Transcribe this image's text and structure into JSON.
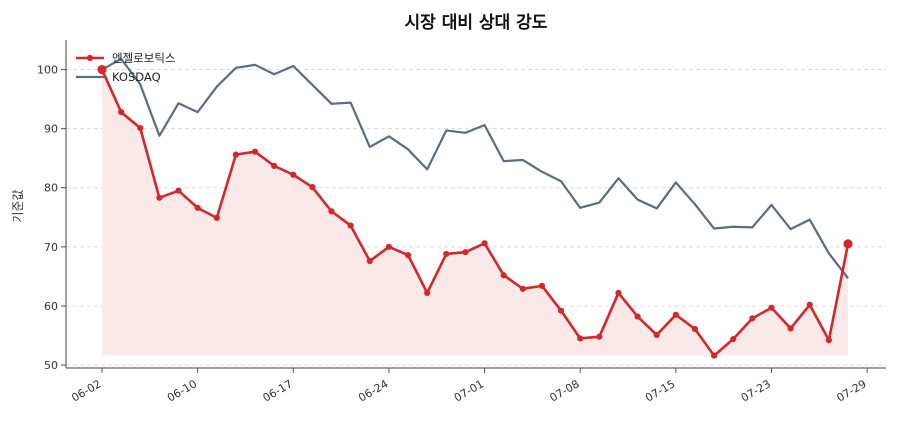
{
  "chart_data": {
    "type": "line",
    "title": "시장 대비 상대 강도",
    "xlabel": "",
    "ylabel": "기준값",
    "ylim": [
      49.5,
      105
    ],
    "y_ticks": [
      "50",
      "60",
      "70",
      "80",
      "90",
      "100"
    ],
    "x_tick_labels": [
      "06-02",
      "06-10",
      "06-17",
      "06-24",
      "07-01",
      "07-08",
      "07-15",
      "07-23",
      "07-29"
    ],
    "x_tick_index": [
      0,
      5,
      10,
      15,
      20,
      25,
      30,
      35,
      40
    ],
    "grid": "horizontal dashed",
    "legend_position": "top-left",
    "series": [
      {
        "name": "엔젤로보틱스",
        "color": "#d62728",
        "fill_color": "#fbe8e8",
        "values": [
          100.0,
          92.8,
          90.1,
          78.3,
          79.5,
          76.6,
          74.9,
          85.6,
          86.1,
          83.7,
          82.2,
          80.1,
          76.0,
          73.6,
          67.6,
          70.0,
          68.6,
          62.2,
          68.8,
          69.1,
          70.6,
          65.2,
          62.9,
          63.4,
          59.2,
          54.5,
          54.8,
          62.2,
          58.2,
          55.1,
          58.5,
          56.1,
          51.6,
          54.4,
          57.9,
          59.7,
          56.2,
          60.2,
          54.2,
          70.5
        ]
      },
      {
        "name": "KOSDAQ",
        "color": "#5b6b82",
        "values": [
          100.0,
          101.8,
          97.5,
          88.8,
          94.3,
          92.8,
          97.1,
          100.3,
          100.8,
          99.2,
          100.6,
          97.4,
          94.2,
          94.4,
          86.9,
          88.7,
          86.5,
          83.1,
          89.7,
          89.3,
          90.6,
          84.5,
          84.7,
          82.7,
          81.1,
          76.6,
          77.5,
          81.6,
          78.0,
          76.5,
          80.9,
          77.2,
          73.1,
          73.4,
          73.3,
          77.1,
          73.0,
          74.6,
          68.9,
          64.7
        ]
      }
    ]
  }
}
